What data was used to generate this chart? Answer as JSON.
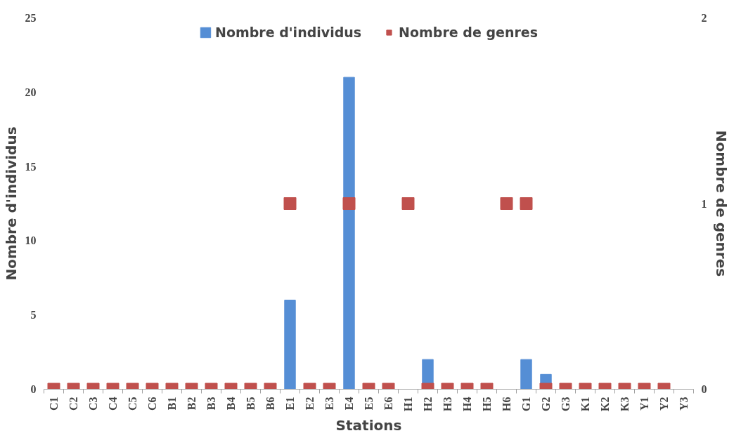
{
  "chart_data": {
    "type": "bar",
    "xlabel": "Stations",
    "ylabel": "Nombre d'individus",
    "y2label": "Nombre de genres",
    "categories": [
      "C1",
      "C2",
      "C3",
      "C4",
      "C5",
      "C6",
      "B1",
      "B2",
      "B3",
      "B4",
      "B5",
      "B6",
      "E1",
      "E2",
      "E3",
      "E4",
      "E5",
      "E6",
      "H1",
      "H2",
      "H3",
      "H4",
      "H5",
      "H6",
      "G1",
      "G2",
      "G3",
      "K1",
      "K2",
      "K3",
      "Y1",
      "Y2",
      "Y3"
    ],
    "series": [
      {
        "name": "Nombre d'individus",
        "color": "#558ed5",
        "values": [
          0,
          0,
          0,
          0,
          0,
          0,
          0,
          0,
          0,
          0,
          0,
          0,
          6,
          0,
          0,
          21,
          0,
          0,
          0,
          2,
          0,
          0,
          0,
          0,
          2,
          1,
          0,
          0,
          0,
          0,
          0,
          0,
          0
        ]
      },
      {
        "name": "Nombre de genres",
        "type": "scatter",
        "axis": "y2",
        "marker": "square",
        "color": "#c0504d",
        "values": [
          0,
          0,
          0,
          0,
          0,
          0,
          0,
          0,
          0,
          0,
          0,
          0,
          1,
          0,
          0,
          1,
          0,
          0,
          1,
          0,
          0,
          0,
          0,
          1,
          1,
          0,
          0,
          0,
          0,
          0,
          0,
          0,
          null
        ]
      }
    ],
    "ylim": [
      0,
      25
    ],
    "yticks": [
      0,
      5,
      10,
      15,
      20,
      25
    ],
    "y2lim": [
      0,
      2
    ],
    "y2ticks": [
      0,
      1,
      2
    ],
    "grid": false,
    "legend": "top"
  }
}
